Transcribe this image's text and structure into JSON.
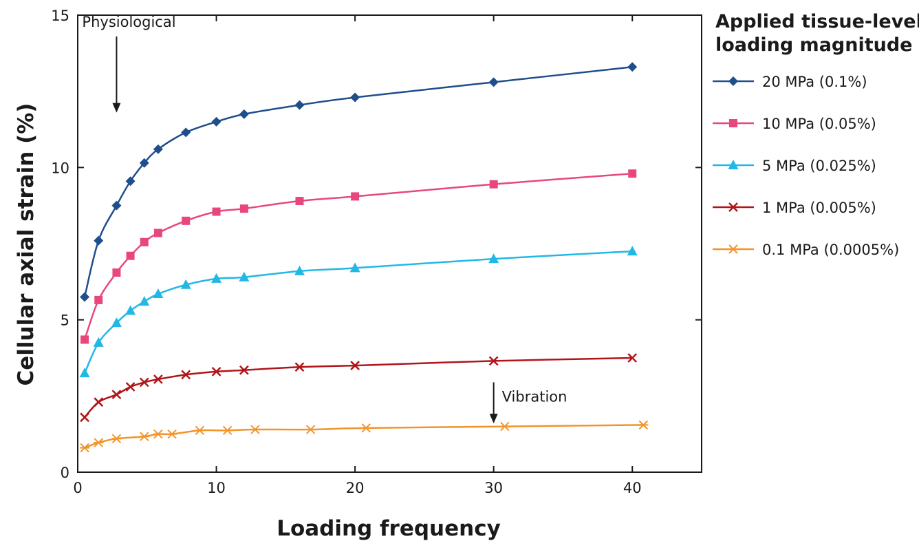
{
  "chart_data": {
    "type": "line",
    "xlabel": "Loading frequency",
    "ylabel": "Cellular axial strain (%)",
    "xlim": [
      0,
      45
    ],
    "ylim": [
      0,
      15
    ],
    "xticks": [
      0,
      10,
      20,
      30,
      40
    ],
    "yticks": [
      0,
      5,
      10,
      15
    ],
    "grid": false,
    "legend": {
      "title_lines": [
        "Applied tissue-level",
        "loading magnitude"
      ],
      "placement": "right"
    },
    "annotations": [
      {
        "text": "Physiological",
        "arrow_x": 2.8,
        "arrow_from_y": 14.3,
        "arrow_to_y": 11.8
      },
      {
        "text": "Vibration",
        "arrow_x": 30,
        "arrow_from_y": 2.95,
        "arrow_to_y": 1.6
      }
    ],
    "series": [
      {
        "name": "20 MPa (0.1%)",
        "color": "#1f4e8c",
        "marker": "diamond",
        "x": [
          0.5,
          1.5,
          2.8,
          3.8,
          4.8,
          5.8,
          7.8,
          10,
          12,
          16,
          20,
          30,
          40
        ],
        "y": [
          5.75,
          7.6,
          8.75,
          9.55,
          10.15,
          10.6,
          11.15,
          11.5,
          11.75,
          12.05,
          12.3,
          12.8,
          13.3
        ]
      },
      {
        "name": "10 MPa (0.05%)",
        "color": "#e8477c",
        "marker": "square",
        "x": [
          0.5,
          1.5,
          2.8,
          3.8,
          4.8,
          5.8,
          7.8,
          10,
          12,
          16,
          20,
          30,
          40
        ],
        "y": [
          4.35,
          5.65,
          6.55,
          7.1,
          7.55,
          7.85,
          8.25,
          8.55,
          8.65,
          8.9,
          9.05,
          9.45,
          9.8
        ]
      },
      {
        "name": "5 MPa (0.025%)",
        "color": "#22b8e6",
        "marker": "triangle",
        "x": [
          0.5,
          1.5,
          2.8,
          3.8,
          4.8,
          5.8,
          7.8,
          10,
          12,
          16,
          20,
          30,
          40
        ],
        "y": [
          3.25,
          4.25,
          4.9,
          5.3,
          5.6,
          5.85,
          6.15,
          6.35,
          6.4,
          6.6,
          6.7,
          7.0,
          7.25
        ]
      },
      {
        "name": "1 MPa (0.005%)",
        "color": "#b0151a",
        "marker": "x",
        "x": [
          0.5,
          1.5,
          2.8,
          3.8,
          4.8,
          5.8,
          7.8,
          10,
          12,
          16,
          20,
          30,
          40
        ],
        "y": [
          1.8,
          2.3,
          2.55,
          2.8,
          2.95,
          3.05,
          3.2,
          3.3,
          3.35,
          3.45,
          3.5,
          3.65,
          3.75
        ]
      },
      {
        "name": "0.1 MPa (0.0005%)",
        "color": "#f2942a",
        "marker": "asterisk",
        "x": [
          0.5,
          1.5,
          2.8,
          4.8,
          5.8,
          6.8,
          8.8,
          10.8,
          12.8,
          16.8,
          20.8,
          30.8,
          40.8
        ],
        "y": [
          0.8,
          0.97,
          1.1,
          1.17,
          1.25,
          1.25,
          1.37,
          1.37,
          1.4,
          1.4,
          1.45,
          1.5,
          1.55
        ]
      }
    ]
  }
}
